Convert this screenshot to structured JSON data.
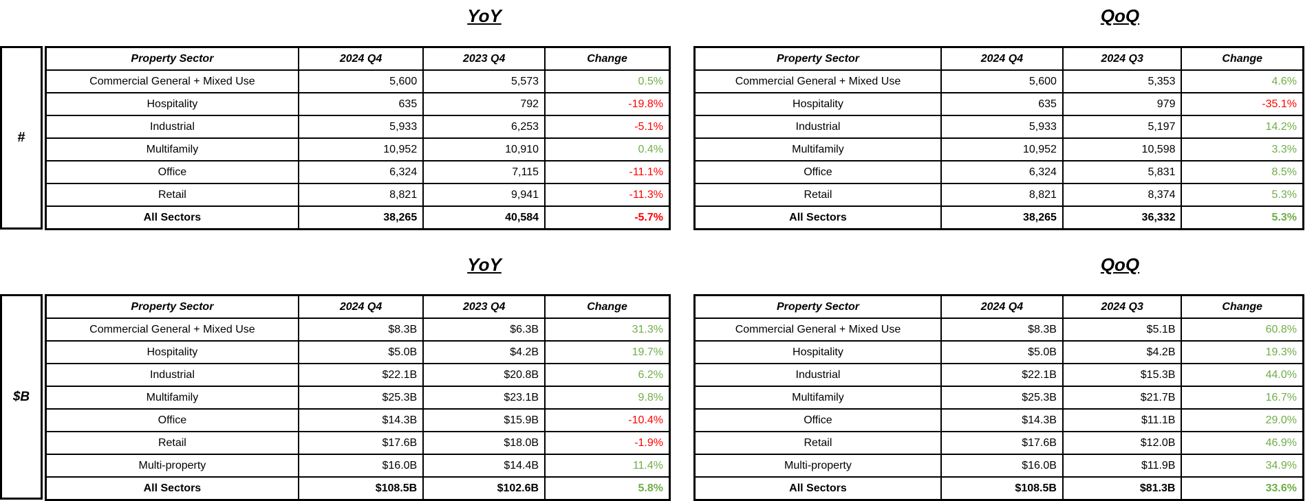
{
  "colors": {
    "positive": "#70AD47",
    "negative": "#FF0000",
    "border": "#000000",
    "text": "#000000",
    "background": "#FFFFFF"
  },
  "sections": [
    {
      "unit_label": "#",
      "tables": [
        {
          "title": "YoY",
          "columns": [
            "Property Sector",
            "2024 Q4",
            "2023 Q4",
            "Change"
          ],
          "rows": [
            {
              "sector": "Commercial General + Mixed Use",
              "current": "5,600",
              "prior": "5,573",
              "change": "0.5%",
              "trend": "positive",
              "total": false
            },
            {
              "sector": "Hospitality",
              "current": "635",
              "prior": "792",
              "change": "-19.8%",
              "trend": "negative",
              "total": false
            },
            {
              "sector": "Industrial",
              "current": "5,933",
              "prior": "6,253",
              "change": "-5.1%",
              "trend": "negative",
              "total": false
            },
            {
              "sector": "Multifamily",
              "current": "10,952",
              "prior": "10,910",
              "change": "0.4%",
              "trend": "positive",
              "total": false
            },
            {
              "sector": "Office",
              "current": "6,324",
              "prior": "7,115",
              "change": "-11.1%",
              "trend": "negative",
              "total": false
            },
            {
              "sector": "Retail",
              "current": "8,821",
              "prior": "9,941",
              "change": "-11.3%",
              "trend": "negative",
              "total": false
            },
            {
              "sector": "All Sectors",
              "current": "38,265",
              "prior": "40,584",
              "change": "-5.7%",
              "trend": "negative",
              "total": true
            }
          ]
        },
        {
          "title": "QoQ",
          "columns": [
            "Property Sector",
            "2024 Q4",
            "2024 Q3",
            "Change"
          ],
          "rows": [
            {
              "sector": "Commercial General + Mixed Use",
              "current": "5,600",
              "prior": "5,353",
              "change": "4.6%",
              "trend": "positive",
              "total": false
            },
            {
              "sector": "Hospitality",
              "current": "635",
              "prior": "979",
              "change": "-35.1%",
              "trend": "negative",
              "total": false
            },
            {
              "sector": "Industrial",
              "current": "5,933",
              "prior": "5,197",
              "change": "14.2%",
              "trend": "positive",
              "total": false
            },
            {
              "sector": "Multifamily",
              "current": "10,952",
              "prior": "10,598",
              "change": "3.3%",
              "trend": "positive",
              "total": false
            },
            {
              "sector": "Office",
              "current": "6,324",
              "prior": "5,831",
              "change": "8.5%",
              "trend": "positive",
              "total": false
            },
            {
              "sector": "Retail",
              "current": "8,821",
              "prior": "8,374",
              "change": "5.3%",
              "trend": "positive",
              "total": false
            },
            {
              "sector": "All Sectors",
              "current": "38,265",
              "prior": "36,332",
              "change": "5.3%",
              "trend": "positive",
              "total": true
            }
          ]
        }
      ]
    },
    {
      "unit_label": "$B",
      "tables": [
        {
          "title": "YoY",
          "columns": [
            "Property Sector",
            "2024 Q4",
            "2023 Q4",
            "Change"
          ],
          "rows": [
            {
              "sector": "Commercial General + Mixed Use",
              "current": "$8.3B",
              "prior": "$6.3B",
              "change": "31.3%",
              "trend": "positive",
              "total": false
            },
            {
              "sector": "Hospitality",
              "current": "$5.0B",
              "prior": "$4.2B",
              "change": "19.7%",
              "trend": "positive",
              "total": false
            },
            {
              "sector": "Industrial",
              "current": "$22.1B",
              "prior": "$20.8B",
              "change": "6.2%",
              "trend": "positive",
              "total": false
            },
            {
              "sector": "Multifamily",
              "current": "$25.3B",
              "prior": "$23.1B",
              "change": "9.8%",
              "trend": "positive",
              "total": false
            },
            {
              "sector": "Office",
              "current": "$14.3B",
              "prior": "$15.9B",
              "change": "-10.4%",
              "trend": "negative",
              "total": false
            },
            {
              "sector": "Retail",
              "current": "$17.6B",
              "prior": "$18.0B",
              "change": "-1.9%",
              "trend": "negative",
              "total": false
            },
            {
              "sector": "Multi-property",
              "current": "$16.0B",
              "prior": "$14.4B",
              "change": "11.4%",
              "trend": "positive",
              "total": false
            },
            {
              "sector": "All Sectors",
              "current": "$108.5B",
              "prior": "$102.6B",
              "change": "5.8%",
              "trend": "positive",
              "total": true
            }
          ]
        },
        {
          "title": "QoQ",
          "columns": [
            "Property Sector",
            "2024 Q4",
            "2024 Q3",
            "Change"
          ],
          "rows": [
            {
              "sector": "Commercial General + Mixed Use",
              "current": "$8.3B",
              "prior": "$5.1B",
              "change": "60.8%",
              "trend": "positive",
              "total": false
            },
            {
              "sector": "Hospitality",
              "current": "$5.0B",
              "prior": "$4.2B",
              "change": "19.3%",
              "trend": "positive",
              "total": false
            },
            {
              "sector": "Industrial",
              "current": "$22.1B",
              "prior": "$15.3B",
              "change": "44.0%",
              "trend": "positive",
              "total": false
            },
            {
              "sector": "Multifamily",
              "current": "$25.3B",
              "prior": "$21.7B",
              "change": "16.7%",
              "trend": "positive",
              "total": false
            },
            {
              "sector": "Office",
              "current": "$14.3B",
              "prior": "$11.1B",
              "change": "29.0%",
              "trend": "positive",
              "total": false
            },
            {
              "sector": "Retail",
              "current": "$17.6B",
              "prior": "$12.0B",
              "change": "46.9%",
              "trend": "positive",
              "total": false
            },
            {
              "sector": "Multi-property",
              "current": "$16.0B",
              "prior": "$11.9B",
              "change": "34.9%",
              "trend": "positive",
              "total": false
            },
            {
              "sector": "All Sectors",
              "current": "$108.5B",
              "prior": "$81.3B",
              "change": "33.6%",
              "trend": "positive",
              "total": true
            }
          ]
        }
      ]
    }
  ]
}
